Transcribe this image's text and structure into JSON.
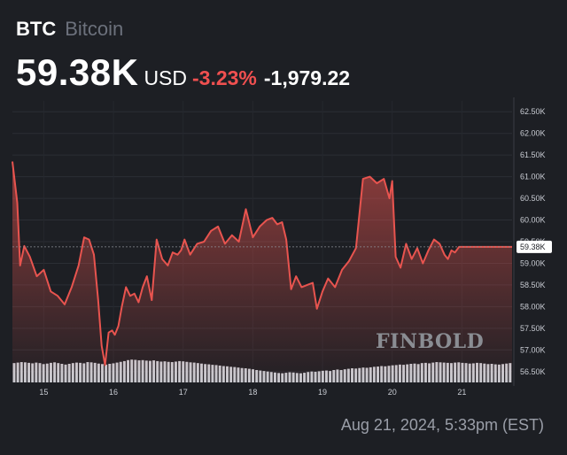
{
  "header": {
    "ticker": "BTC",
    "name": "Bitcoin",
    "price": "59.38K",
    "currency": "USD",
    "change_percent": "-3.23%",
    "change_value": "-1,979.22"
  },
  "timestamp": "Aug 21, 2024, 5:33pm (EST)",
  "watermark": "FINBOLD",
  "colors": {
    "background": "#1d1f24",
    "line": "#e8544f",
    "negative": "#f05050",
    "volume": "#c9ccd2",
    "grid": "#2b2e35"
  },
  "chart_data": {
    "type": "line",
    "title": "",
    "xlabel": "",
    "ylabel": "",
    "ylim": [
      56.25,
      62.75
    ],
    "y_ticks": [
      "56.50K",
      "57.00K",
      "57.50K",
      "58.00K",
      "58.50K",
      "59.00K",
      "59.50K",
      "60.00K",
      "60.50K",
      "61.00K",
      "61.50K",
      "62.00K",
      "62.50K"
    ],
    "x_ticks": [
      {
        "label": "15",
        "day": 15
      },
      {
        "label": "16",
        "day": 16
      },
      {
        "label": "17",
        "day": 17
      },
      {
        "label": "18",
        "day": 18
      },
      {
        "label": "19",
        "day": 19
      },
      {
        "label": "20",
        "day": 20
      },
      {
        "label": "21",
        "day": 21
      }
    ],
    "current_value_label": "59.38K",
    "current_value": 59.38,
    "grid": true,
    "series": [
      {
        "x": [
          14.55,
          14.62,
          14.66,
          14.72,
          14.8,
          14.9,
          15.0,
          15.1,
          15.2,
          15.3,
          15.4,
          15.5,
          15.58,
          15.65,
          15.72,
          15.78,
          15.83,
          15.88,
          15.93,
          15.98,
          16.02,
          16.07,
          16.12,
          16.18,
          16.24,
          16.3,
          16.36,
          16.42,
          16.48,
          16.55,
          16.62,
          16.7,
          16.78,
          16.85,
          16.92,
          16.97,
          17.02,
          17.1,
          17.2,
          17.3,
          17.4,
          17.5,
          17.6,
          17.7,
          17.8,
          17.9,
          18.0,
          18.1,
          18.2,
          18.28,
          18.35,
          18.42,
          18.48,
          18.55,
          18.62,
          18.7,
          18.78,
          18.86,
          18.92,
          19.0,
          19.08,
          19.18,
          19.28,
          19.38,
          19.48,
          19.58,
          19.68,
          19.78,
          19.88,
          19.96,
          20.0,
          20.05,
          20.12,
          20.2,
          20.28,
          20.36,
          20.44,
          20.52,
          20.6,
          20.68,
          20.75,
          20.8,
          20.85,
          20.9,
          20.96,
          21.02,
          21.1,
          21.18,
          21.26,
          21.34,
          21.42,
          21.5,
          21.58,
          21.65,
          21.72
        ],
        "values": [
          61.35,
          60.4,
          58.95,
          59.4,
          59.15,
          58.7,
          58.85,
          58.35,
          58.25,
          58.05,
          58.45,
          58.95,
          59.6,
          59.55,
          59.2,
          58.15,
          57.1,
          56.65,
          57.4,
          57.45,
          57.35,
          57.55,
          58.0,
          58.45,
          58.25,
          58.3,
          58.1,
          58.45,
          58.7,
          58.15,
          59.55,
          59.1,
          58.95,
          59.25,
          59.2,
          59.3,
          59.55,
          59.2,
          59.45,
          59.5,
          59.75,
          59.85,
          59.45,
          59.65,
          59.5,
          60.25,
          59.6,
          59.85,
          60.0,
          60.05,
          59.9,
          59.95,
          59.55,
          58.4,
          58.7,
          58.45,
          58.5,
          58.55,
          57.95,
          58.35,
          58.65,
          58.45,
          58.85,
          59.05,
          59.35,
          60.95,
          61.0,
          60.85,
          60.95,
          60.5,
          60.9,
          59.15,
          58.9,
          59.45,
          59.1,
          59.35,
          59.0,
          59.3,
          59.55,
          59.45,
          59.2,
          59.1,
          59.3,
          59.25,
          59.38,
          59.38,
          59.38,
          59.38,
          59.38,
          59.38,
          59.38,
          59.38,
          59.38,
          59.38,
          59.38
        ]
      }
    ],
    "volume": {
      "x_start": 14.55,
      "x_end": 21.72,
      "values": [
        0.78,
        0.8,
        0.82,
        0.81,
        0.79,
        0.77,
        0.8,
        0.78,
        0.74,
        0.76,
        0.79,
        0.81,
        0.78,
        0.75,
        0.72,
        0.75,
        0.78,
        0.8,
        0.79,
        0.77,
        0.82,
        0.81,
        0.79,
        0.76,
        0.74,
        0.72,
        0.75,
        0.77,
        0.8,
        0.83,
        0.86,
        0.9,
        0.92,
        0.91,
        0.89,
        0.9,
        0.88,
        0.87,
        0.89,
        0.86,
        0.84,
        0.85,
        0.83,
        0.82,
        0.84,
        0.86,
        0.85,
        0.83,
        0.81,
        0.8,
        0.78,
        0.76,
        0.74,
        0.73,
        0.71,
        0.7,
        0.68,
        0.66,
        0.65,
        0.63,
        0.62,
        0.6,
        0.58,
        0.57,
        0.55,
        0.53,
        0.5,
        0.48,
        0.46,
        0.44,
        0.42,
        0.4,
        0.38,
        0.37,
        0.39,
        0.41,
        0.4,
        0.38,
        0.37,
        0.39,
        0.42,
        0.44,
        0.43,
        0.45,
        0.47,
        0.48,
        0.46,
        0.5,
        0.52,
        0.5,
        0.53,
        0.55,
        0.57,
        0.56,
        0.58,
        0.6,
        0.59,
        0.61,
        0.63,
        0.64,
        0.66,
        0.65,
        0.67,
        0.69,
        0.7,
        0.72,
        0.71,
        0.73,
        0.75,
        0.76,
        0.74,
        0.78,
        0.79,
        0.77,
        0.8,
        0.82,
        0.81,
        0.8,
        0.79,
        0.78,
        0.8,
        0.81,
        0.79,
        0.78,
        0.76,
        0.77,
        0.79,
        0.78,
        0.76,
        0.74,
        0.75,
        0.73,
        0.72,
        0.74,
        0.76,
        0.78
      ]
    }
  }
}
